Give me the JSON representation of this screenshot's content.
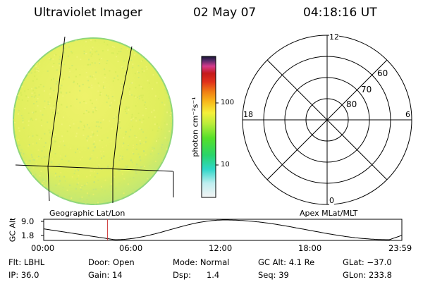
{
  "header": {
    "instrument": "Ultraviolet Imager",
    "date": "02 May 07",
    "time": "04:18:16 UT"
  },
  "colorbar": {
    "unit_label": "photon cm⁻²s⁻¹",
    "ticks": [
      "100",
      "10"
    ]
  },
  "polar_plot": {
    "mlt_labels": [
      "12",
      "18",
      "6",
      "0"
    ],
    "lat_labels": [
      "60",
      "70",
      "80"
    ]
  },
  "map_labels": {
    "left": "Geographic Lat/Lon",
    "right": "Apex MLat/MLT"
  },
  "timeline": {
    "axis_label": "GC Alt",
    "y_ticks": [
      "9.0",
      "1.8"
    ],
    "x_ticks": [
      "00:00",
      "06:00",
      "12:00",
      "18:00",
      "23:59"
    ],
    "current_time_fraction": 0.178
  },
  "status": {
    "filter": "Flt: LBHL",
    "ip": "IP: 36.0",
    "door": "Door: Open",
    "gain": "Gain: 14",
    "mode": "Mode: Normal",
    "dsp": "Dsp:      1.4",
    "gc_alt": "GC Alt: 4.1 Re",
    "seq": "Seq: 39",
    "glat": "GLat: −37.0",
    "glon": "GLon: 233.8"
  },
  "colors": {
    "disk_fill": "#e2ee5c",
    "cursor": "#cc3333"
  }
}
